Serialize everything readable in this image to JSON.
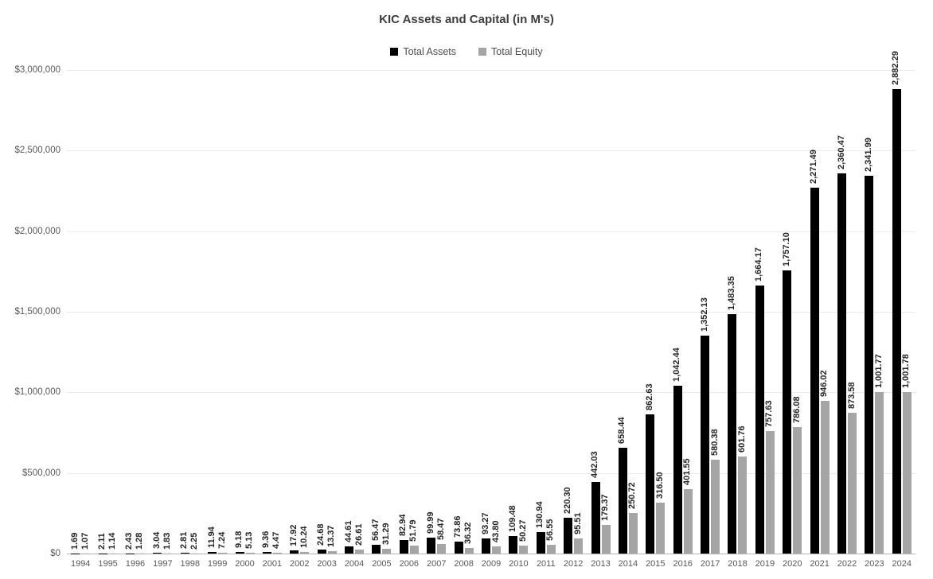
{
  "chart_data": {
    "type": "bar",
    "title": "KIC Assets and Capital (in M's)",
    "categories": [
      "1994",
      "1995",
      "1996",
      "1997",
      "1998",
      "1999",
      "2000",
      "2001",
      "2002",
      "2003",
      "2004",
      "2005",
      "2006",
      "2007",
      "2008",
      "2009",
      "2010",
      "2011",
      "2012",
      "2013",
      "2014",
      "2015",
      "2016",
      "2017",
      "2018",
      "2019",
      "2020",
      "2021",
      "2022",
      "2023",
      "2024"
    ],
    "series": [
      {
        "name": "Total Assets",
        "color": "#000000",
        "values": [
          1.69,
          2.11,
          2.43,
          3.04,
          2.81,
          11.94,
          9.18,
          9.36,
          17.92,
          24.68,
          44.61,
          56.47,
          82.94,
          99.99,
          73.86,
          93.27,
          109.48,
          130.94,
          220.3,
          442.03,
          658.44,
          862.63,
          1042.44,
          1352.13,
          1483.35,
          1664.17,
          1757.1,
          2271.49,
          2360.47,
          2341.99,
          2882.29
        ]
      },
      {
        "name": "Total Equity",
        "color": "#a5a5a5",
        "values": [
          1.07,
          1.14,
          1.28,
          1.83,
          2.25,
          7.24,
          5.13,
          4.47,
          10.24,
          13.37,
          26.61,
          31.29,
          51.79,
          58.47,
          36.32,
          43.8,
          50.27,
          56.55,
          95.51,
          179.37,
          250.72,
          316.5,
          401.55,
          580.38,
          601.76,
          757.63,
          786.08,
          946.02,
          873.58,
          1001.77,
          1001.78
        ]
      }
    ],
    "y_axis": {
      "min": 0,
      "max": 3000000,
      "value_scale": 1000,
      "tick_labels": [
        "$0",
        "$500,000",
        "$1,000,000",
        "$1,500,000",
        "$2,000,000",
        "$2,500,000",
        "$3,000,000"
      ]
    },
    "data_labels": {
      "rotation": -90,
      "format": "#,##0.00"
    },
    "legend_position": "top",
    "grid": true
  }
}
